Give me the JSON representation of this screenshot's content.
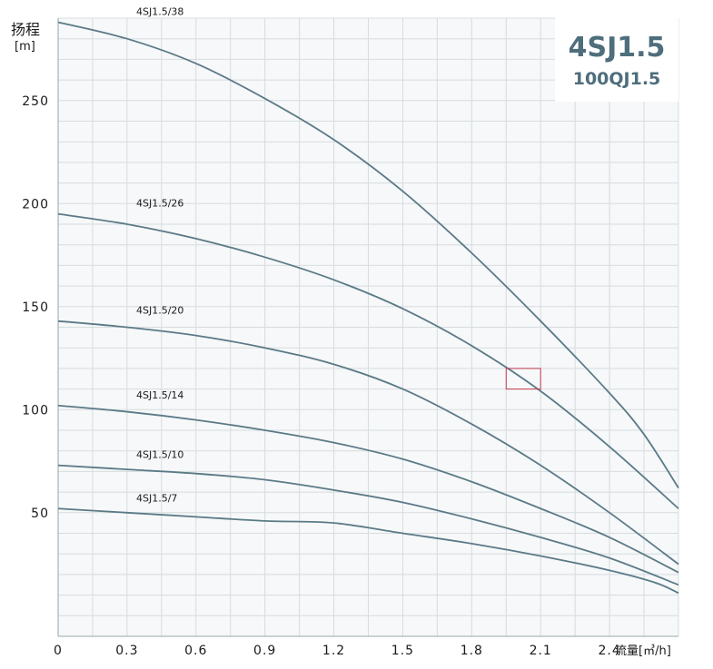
{
  "chart_data": {
    "type": "line",
    "title": "4SJ1.5",
    "subtitle": "100QJ1.5",
    "ylabel": "扬程",
    "ylabel_unit": "[m]",
    "xlabel": "流量[㎥/h]",
    "xlim": [
      0,
      2.7
    ],
    "ylim": [
      -10,
      290
    ],
    "x_ticks": [
      "0",
      "0.3",
      "0.6",
      "0.9",
      "1.2",
      "1.5",
      "1.8",
      "2.1",
      "2.4"
    ],
    "y_ticks": [
      "50",
      "100",
      "150",
      "200",
      "250"
    ],
    "grid": true,
    "colors": {
      "line": "#5b7a87",
      "grid": "#d7dcdf",
      "marker": "#c43a50",
      "title": "#4e6e7c",
      "background": "#f6f8f9"
    },
    "series": [
      {
        "name": "4SJ1.5/38",
        "x": [
          0,
          0.3,
          0.6,
          0.9,
          1.2,
          1.5,
          1.8,
          2.1,
          2.4,
          2.55,
          2.7
        ],
        "y": [
          288,
          280,
          268,
          251,
          231,
          206,
          176,
          143,
          108,
          88,
          62
        ]
      },
      {
        "name": "4SJ1.5/26",
        "x": [
          0,
          0.3,
          0.6,
          0.9,
          1.2,
          1.5,
          1.8,
          2.1,
          2.4,
          2.7
        ],
        "y": [
          195,
          190,
          183,
          174,
          163,
          149,
          131,
          109,
          82,
          52
        ]
      },
      {
        "name": "4SJ1.5/20",
        "x": [
          0,
          0.3,
          0.6,
          0.9,
          1.2,
          1.5,
          1.8,
          2.1,
          2.4,
          2.7
        ],
        "y": [
          143,
          140,
          136,
          130,
          122,
          110,
          93,
          73,
          50,
          25
        ]
      },
      {
        "name": "4SJ1.5/14",
        "x": [
          0,
          0.3,
          0.6,
          0.9,
          1.2,
          1.5,
          1.8,
          2.1,
          2.4,
          2.7
        ],
        "y": [
          102,
          99,
          95,
          90,
          84,
          76,
          65,
          52,
          38,
          21
        ]
      },
      {
        "name": "4SJ1.5/10",
        "x": [
          0,
          0.3,
          0.6,
          0.9,
          1.2,
          1.5,
          1.8,
          2.1,
          2.4,
          2.7
        ],
        "y": [
          73,
          71,
          69,
          66,
          61,
          55,
          47,
          38,
          28,
          15
        ]
      },
      {
        "name": "4SJ1.5/7",
        "x": [
          0,
          0.3,
          0.6,
          0.9,
          1.2,
          1.5,
          1.8,
          2.1,
          2.4,
          2.6,
          2.7
        ],
        "y": [
          52,
          50,
          48,
          46,
          45,
          40,
          35,
          29,
          22,
          16,
          11
        ]
      }
    ],
    "highlight_box": {
      "x": [
        1.95,
        2.1
      ],
      "y": [
        120,
        110
      ]
    }
  }
}
